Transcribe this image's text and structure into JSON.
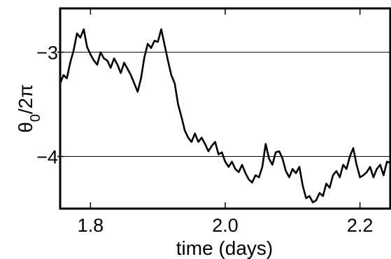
{
  "chart_data": {
    "type": "line",
    "title": "",
    "xlabel": "time (days)",
    "ylabel": "θ0/2π",
    "ylabel_parts": {
      "base": "θ",
      "sub": "0",
      "rest": "/2π"
    },
    "xlim": [
      1.755,
      2.245
    ],
    "ylim": [
      -4.5,
      -2.58
    ],
    "x_ticks": [
      1.8,
      2.0,
      2.2
    ],
    "x_tick_labels": [
      "1.8",
      "2.0",
      "2.2"
    ],
    "y_ticks": [
      -3,
      -4
    ],
    "y_tick_labels": [
      "−3",
      "−4"
    ],
    "horizontal_lines": [
      -3,
      -4
    ],
    "grid": false,
    "line_color": "#000000",
    "series": [
      {
        "x": [
          1.755,
          1.76,
          1.765,
          1.77,
          1.775,
          1.78,
          1.785,
          1.79,
          1.795,
          1.8,
          1.805,
          1.81,
          1.815,
          1.82,
          1.825,
          1.83,
          1.835,
          1.84,
          1.845,
          1.85,
          1.855,
          1.86,
          1.865,
          1.87,
          1.875,
          1.88,
          1.885,
          1.89,
          1.895,
          1.9,
          1.905,
          1.91,
          1.915,
          1.92,
          1.925,
          1.93,
          1.935,
          1.94,
          1.945,
          1.95,
          1.955,
          1.96,
          1.965,
          1.97,
          1.975,
          1.98,
          1.985,
          1.99,
          1.995,
          2.0,
          2.005,
          2.01,
          2.015,
          2.02,
          2.025,
          2.03,
          2.035,
          2.04,
          2.045,
          2.05,
          2.055,
          2.06,
          2.065,
          2.07,
          2.075,
          2.08,
          2.085,
          2.09,
          2.095,
          2.1,
          2.105,
          2.11,
          2.115,
          2.12,
          2.125,
          2.13,
          2.135,
          2.14,
          2.145,
          2.15,
          2.155,
          2.16,
          2.165,
          2.17,
          2.175,
          2.18,
          2.185,
          2.19,
          2.195,
          2.2,
          2.205,
          2.21,
          2.215,
          2.22,
          2.225,
          2.23,
          2.235,
          2.24,
          2.245
        ],
        "y": [
          -3.3,
          -3.22,
          -3.25,
          -3.1,
          -2.98,
          -2.82,
          -2.86,
          -2.78,
          -2.95,
          -3.02,
          -3.08,
          -3.12,
          -3.0,
          -3.06,
          -3.08,
          -3.15,
          -3.06,
          -3.12,
          -3.2,
          -3.1,
          -3.16,
          -3.22,
          -3.3,
          -3.38,
          -3.25,
          -3.05,
          -2.92,
          -2.96,
          -2.89,
          -2.9,
          -2.78,
          -2.93,
          -3.08,
          -3.22,
          -3.3,
          -3.5,
          -3.62,
          -3.75,
          -3.82,
          -3.86,
          -3.78,
          -3.86,
          -3.82,
          -3.88,
          -3.95,
          -3.9,
          -3.86,
          -3.98,
          -3.96,
          -4.05,
          -4.1,
          -4.05,
          -4.12,
          -4.15,
          -4.08,
          -4.16,
          -4.22,
          -4.25,
          -4.18,
          -4.2,
          -4.1,
          -3.88,
          -4.02,
          -4.08,
          -3.96,
          -3.95,
          -4.02,
          -4.14,
          -4.2,
          -4.12,
          -4.16,
          -4.1,
          -4.28,
          -4.4,
          -4.38,
          -4.44,
          -4.42,
          -4.35,
          -4.38,
          -4.26,
          -4.3,
          -4.18,
          -4.14,
          -4.2,
          -4.08,
          -4.12,
          -4.0,
          -3.92,
          -4.08,
          -4.2,
          -4.18,
          -4.15,
          -4.1,
          -4.2,
          -4.12,
          -4.08,
          -4.18,
          -4.05,
          -4.06
        ]
      }
    ]
  }
}
